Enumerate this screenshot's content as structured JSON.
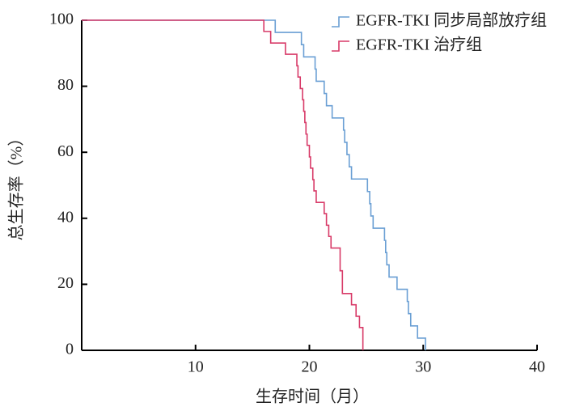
{
  "chart_data": {
    "type": "step",
    "x_label": "生存时间（月）",
    "y_label": "总生存率（%）",
    "xlim": [
      0,
      40
    ],
    "xticks": [
      10,
      20,
      30,
      40
    ],
    "ylim": [
      0,
      100
    ],
    "yticks": [
      0,
      20,
      40,
      60,
      80,
      100
    ],
    "legend": "top-right",
    "series": [
      {
        "name": "EGFR-TKI 同步局部放疗组",
        "color": "#6a9fd4",
        "x": [
          0,
          17.0,
          19.3,
          19.5,
          20.5,
          20.6,
          21.3,
          21.5,
          22.0,
          23.0,
          23.1,
          23.3,
          23.5,
          23.7,
          25.1,
          25.3,
          25.4,
          25.6,
          26.6,
          26.7,
          26.8,
          27.0,
          27.7,
          28.6,
          28.7,
          28.9,
          29.5,
          30.2
        ],
        "values": [
          100,
          96.3,
          92.6,
          88.9,
          85.2,
          81.5,
          77.8,
          74.1,
          70.4,
          66.7,
          63.0,
          59.3,
          55.6,
          51.9,
          48.1,
          44.4,
          40.7,
          37.0,
          33.3,
          29.6,
          25.9,
          22.2,
          18.5,
          14.8,
          11.1,
          7.4,
          3.7,
          0
        ]
      },
      {
        "name": "EGFR-TKI 治疗组",
        "color": "#d83a68",
        "x": [
          0,
          16.0,
          16.6,
          17.9,
          18.9,
          19.0,
          19.2,
          19.4,
          19.5,
          19.6,
          19.7,
          19.8,
          20.0,
          20.1,
          20.3,
          20.4,
          20.6,
          21.3,
          21.5,
          21.7,
          21.9,
          22.7,
          22.9,
          23.7,
          24.1,
          24.4,
          24.7
        ],
        "values": [
          100,
          96.6,
          93.1,
          89.7,
          86.2,
          82.8,
          79.3,
          75.9,
          72.4,
          69.0,
          65.5,
          62.1,
          58.6,
          55.2,
          51.7,
          48.3,
          44.8,
          41.4,
          37.9,
          34.5,
          31.0,
          24.1,
          17.2,
          13.8,
          10.3,
          6.9,
          0
        ]
      }
    ]
  }
}
